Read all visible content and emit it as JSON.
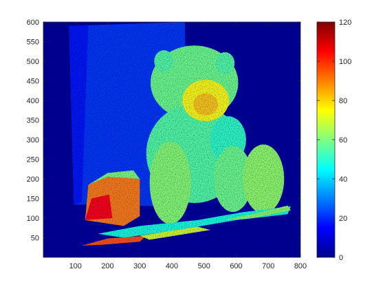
{
  "chart_data": {
    "type": "heatmap",
    "title": "",
    "xlabel": "",
    "ylabel": "",
    "xlim": [
      0,
      800
    ],
    "ylim": [
      0,
      600
    ],
    "y_direction": "normal",
    "x_ticks": [
      100,
      200,
      300,
      400,
      500,
      600,
      700,
      800
    ],
    "y_ticks": [
      50,
      100,
      150,
      200,
      250,
      300,
      350,
      400,
      450,
      500,
      550,
      600
    ],
    "colormap": "jet",
    "colorbar": {
      "placement": "right",
      "range": [
        0,
        120
      ],
      "ticks": [
        0,
        20,
        40,
        60,
        80,
        100,
        120
      ]
    },
    "background_value": 0,
    "grid": false,
    "colors": {
      "background": "#00008F",
      "wall_approx": "#0A3FD8",
      "bear_approx": "#8FD84A",
      "bear_face_approx": "#F5D020",
      "left_object_approx": "#F06A1A"
    },
    "regions": [
      {
        "name": "wall",
        "approx_value": 22,
        "x_range": [
          80,
          440
        ],
        "y_range": [
          130,
          590
        ]
      },
      {
        "name": "bear-body",
        "approx_value": 55,
        "x_range": [
          335,
          560
        ],
        "y_range": [
          110,
          540
        ]
      },
      {
        "name": "bear-face",
        "approx_value": 75,
        "x_range": [
          440,
          590
        ],
        "y_range": [
          330,
          460
        ]
      },
      {
        "name": "bear-feet",
        "approx_value": 62,
        "x_range": [
          550,
          740
        ],
        "y_range": [
          115,
          270
        ]
      },
      {
        "name": "left-object",
        "approx_value": 90,
        "x_range": [
          130,
          300
        ],
        "y_range": [
          60,
          200
        ]
      },
      {
        "name": "ground-strip",
        "approx_value": 48,
        "x_range": [
          120,
          770
        ],
        "y_range": [
          30,
          130
        ]
      }
    ]
  }
}
